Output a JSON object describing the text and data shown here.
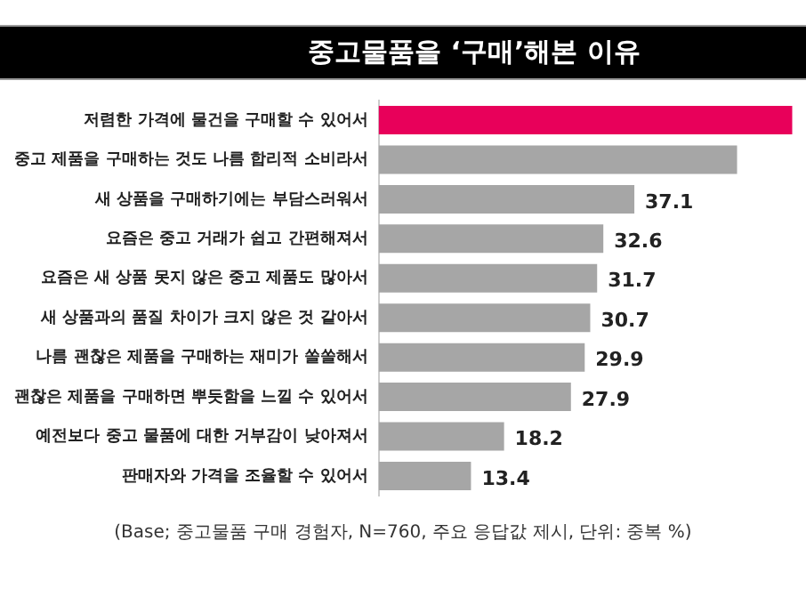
{
  "chart_data": {
    "type": "bar",
    "orientation": "horizontal",
    "title": "중고물품을 ‘구매’해본 이유",
    "categories": [
      "저렴한 가격에 물건을 구매할 수 있어서",
      "중고 제품을 구매하는 것도 나름 합리적 소비라서",
      "새 상품을 구매하기에는 부담스러워서",
      "요즘은 중고 거래가 쉽고 간편해져서",
      "요즘은 새 상품 못지 않은 중고 제품도 많아서",
      "새 상품과의 품질 차이가 크지 않은 것 같아서",
      "나름 괜찮은 제품을 구매하는 재미가 쏠쏠해서",
      "괜찮은 제품을 구매하면 뿌듯함을 느낄 수 있어서",
      "예전보다 중고 물품에 대한 거부감이 낮아져서",
      "판매자와 가격을 조율할 수 있어서"
    ],
    "values": [
      60,
      52,
      37.1,
      32.6,
      31.7,
      30.7,
      29.9,
      27.9,
      18.2,
      13.4
    ],
    "value_labels": [
      null,
      null,
      "37.1",
      "32.6",
      "31.7",
      "30.7",
      "29.9",
      "27.9",
      "18.2",
      "13.4"
    ],
    "colors": [
      "#e8005a",
      "#a6a6a6",
      "#a6a6a6",
      "#a6a6a6",
      "#a6a6a6",
      "#a6a6a6",
      "#a6a6a6",
      "#a6a6a6",
      "#a6a6a6",
      "#a6a6a6"
    ],
    "xlim": [
      0,
      62
    ],
    "legend": false,
    "tick_labels": "y",
    "annotations": [
      "(Base; 중고물품 구매 경험자, N=760, 주요 응답값 제시, 단위: 중복 %)"
    ]
  }
}
